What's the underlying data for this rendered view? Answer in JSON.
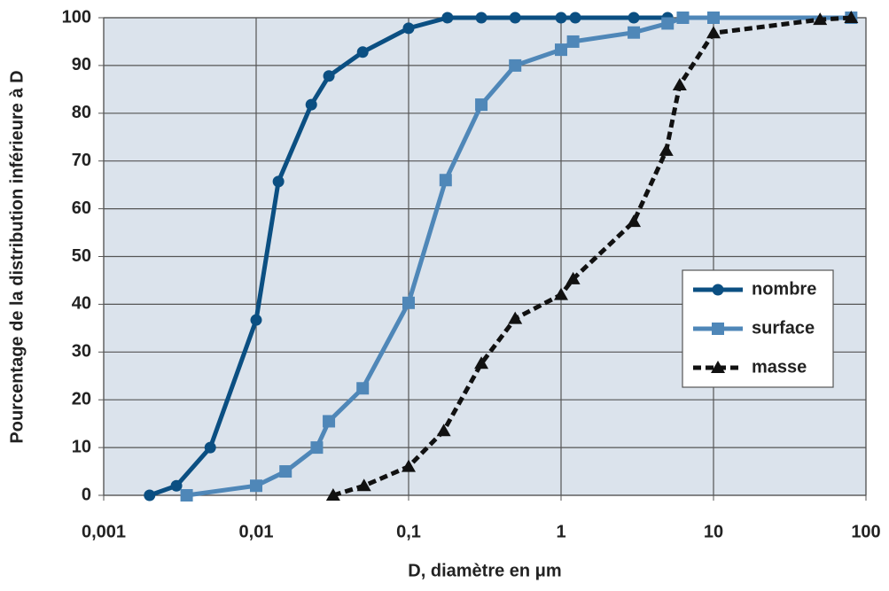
{
  "chart_data": {
    "type": "line",
    "x_label": "D, diamètre en μm",
    "y_label": "Pourcentage de la distribution inférieure à D",
    "xscale": "log",
    "xlim": [
      0.001,
      100
    ],
    "ylim": [
      0,
      100
    ],
    "xticks": [
      {
        "value": 0.001,
        "label": "0,001"
      },
      {
        "value": 0.01,
        "label": "0,01"
      },
      {
        "value": 0.1,
        "label": "0,1"
      },
      1,
      10,
      100
    ],
    "yticks": [
      0,
      10,
      20,
      30,
      40,
      50,
      60,
      70,
      80,
      90,
      100
    ],
    "grid": true,
    "legend": "right",
    "series": [
      {
        "name": "nombre",
        "color": "#0b4f82",
        "marker": "circle",
        "dash": false,
        "x": [
          0.002,
          0.003,
          0.005,
          0.01,
          0.014,
          0.023,
          0.03,
          0.05,
          0.1,
          0.18,
          0.3,
          0.5,
          1,
          1.24,
          3,
          5
        ],
        "values": [
          0,
          2,
          10,
          36.7,
          65.7,
          81.8,
          87.8,
          92.8,
          97.8,
          100,
          100,
          100,
          100,
          100,
          100,
          100
        ]
      },
      {
        "name": "surface",
        "color": "#4f87b8",
        "marker": "square",
        "dash": false,
        "x": [
          0.0035,
          0.01,
          0.0156,
          0.025,
          0.03,
          0.05,
          0.1,
          0.175,
          0.3,
          0.5,
          1,
          1.2,
          3,
          5,
          6.3,
          10,
          80
        ],
        "values": [
          0,
          2,
          5,
          10,
          15.5,
          22.4,
          40.3,
          66,
          81.8,
          90,
          93.3,
          95,
          96.9,
          98.8,
          100,
          100,
          100
        ]
      },
      {
        "name": "masse",
        "color": "#111111",
        "marker": "triangle",
        "dash": true,
        "x": [
          0.032,
          0.051,
          0.1,
          0.17,
          0.3,
          0.5,
          1,
          1.2,
          3,
          4.9,
          6,
          10,
          50,
          80
        ],
        "values": [
          0,
          2,
          6,
          13.5,
          27.6,
          37,
          42,
          45.3,
          57.3,
          72.2,
          85.9,
          96.8,
          99.6,
          100
        ]
      }
    ]
  }
}
